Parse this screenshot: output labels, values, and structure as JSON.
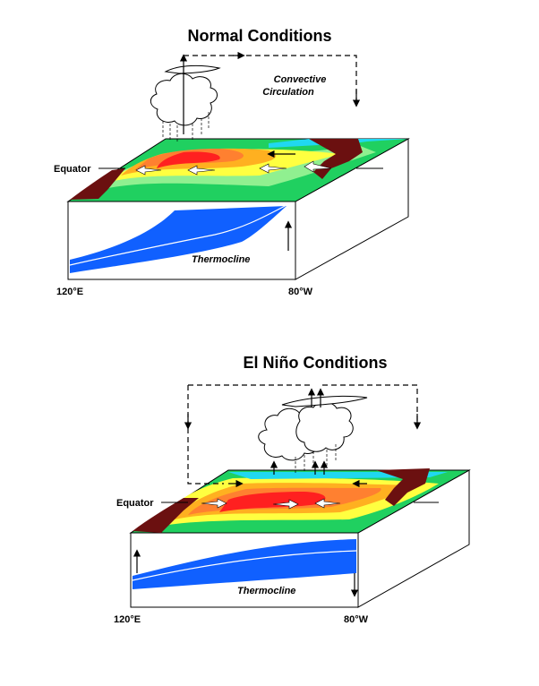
{
  "panels": [
    {
      "title": "Normal Conditions",
      "equator_label": "Equator",
      "circulation_label_line1": "Convective",
      "circulation_label_line2": "Circulation",
      "thermocline_label": "Thermocline",
      "west_longitude": "120°E",
      "east_longitude": "80°W"
    },
    {
      "title": "El Niño Conditions",
      "equator_label": "Equator",
      "thermocline_label": "Thermocline",
      "west_longitude": "120°E",
      "east_longitude": "80°W"
    }
  ],
  "colors": {
    "warmest": "#ff2020",
    "warm": "#ff8030",
    "orange": "#ffb020",
    "yellow": "#ffff40",
    "light_green": "#90f090",
    "green": "#20d060",
    "cyan": "#20d8f0",
    "land": "#6b1010",
    "ocean_deep": "#1060ff",
    "cloud": "#ffffff"
  }
}
